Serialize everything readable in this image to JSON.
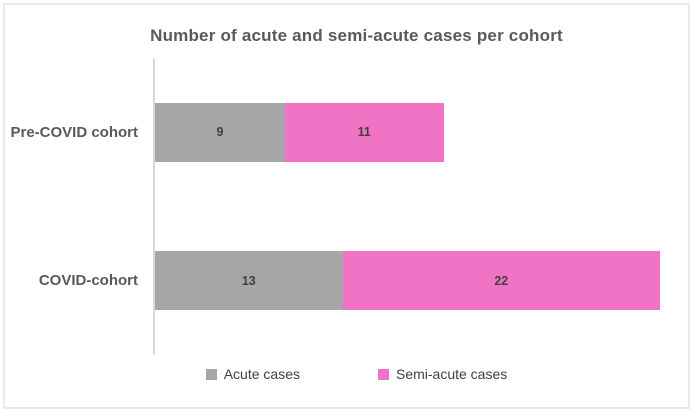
{
  "chart_data": {
    "type": "bar",
    "orientation": "horizontal",
    "stacked": true,
    "title": "Number of acute and semi-acute cases per cohort",
    "categories": [
      "Pre-COVID cohort",
      "COVID-cohort"
    ],
    "series": [
      {
        "name": "Acute cases",
        "values": [
          9,
          13
        ],
        "color": "#a6a6a6"
      },
      {
        "name": "Semi-acute cases",
        "values": [
          11,
          22
        ],
        "color": "#f173c6"
      }
    ],
    "xlabel": "",
    "ylabel": "",
    "xlim": [
      0,
      35
    ],
    "grid": false,
    "bar_labels": true,
    "legend_position": "bottom"
  },
  "colors": {
    "title_text": "#595959",
    "category_text": "#595959",
    "value_text": "#404040",
    "axis_line": "#d9d9d9",
    "frame_border": "#ebe9e9",
    "background": "#ffffff"
  }
}
